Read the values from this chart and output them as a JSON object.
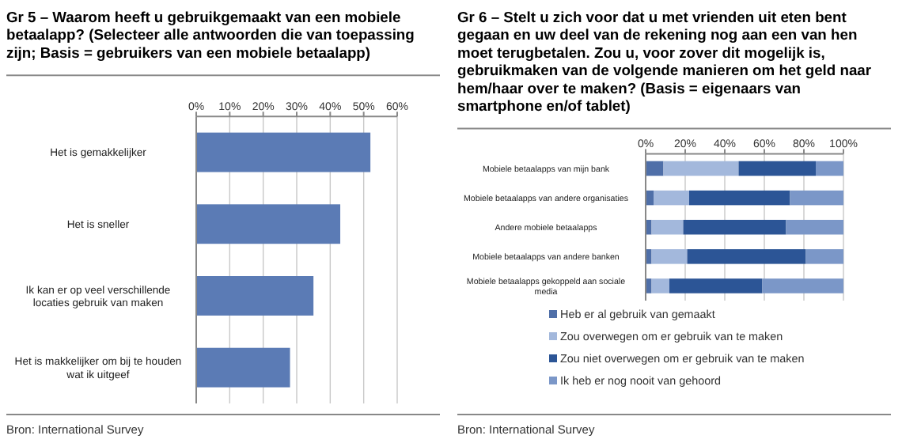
{
  "chart_data": [
    {
      "type": "bar",
      "orientation": "horizontal",
      "title": "Gr 5 –  Waarom heeft u gebruikgemaakt van een mobiele betaalapp? (Selecteer alle antwoorden die van toepassing zijn; Basis = gebruikers van een mobiele betaalapp)",
      "categories": [
        "Het is gemakkelijker",
        "Het is sneller",
        "Ik kan er op veel verschillende locaties gebruik van maken",
        "Het is makkelijker om bij te houden wat ik uitgeef"
      ],
      "values": [
        52,
        43,
        35,
        28
      ],
      "color": "#5b7bb5",
      "xlim": [
        0,
        60
      ],
      "xticks": [
        {
          "value": 0,
          "label": "0%"
        },
        {
          "value": 10,
          "label": "10%"
        },
        {
          "value": 20,
          "label": "20%"
        },
        {
          "value": 30,
          "label": "30%"
        },
        {
          "value": 40,
          "label": "40%"
        },
        {
          "value": 50,
          "label": "50%"
        },
        {
          "value": 60,
          "label": "60%"
        }
      ],
      "grid": "x",
      "annotations": [
        "Bron: International Survey"
      ]
    },
    {
      "type": "bar",
      "orientation": "horizontal",
      "stacked": true,
      "title": "Gr 6 –  Stelt u zich voor dat u met vrienden uit eten bent gegaan en uw deel van de rekening nog aan een van hen moet terugbetalen. Zou u, voor zover dit mogelijk is, gebruikmaken van de volgende manieren om het geld naar hem/haar over te maken? (Basis = eigenaars van smartphone en/of tablet)",
      "categories": [
        "Mobiele betaalapps van mijn bank",
        "Mobiele betaalapps van andere organisaties",
        "Andere mobiele betaalapps",
        "Mobiele betaalapps van andere banken",
        "Mobiele betaalapps gekoppeld aan sociale media"
      ],
      "series": [
        {
          "name": "Heb er al gebruik van gemaakt",
          "color": "#4f6fa8",
          "values": [
            9,
            4,
            3,
            3,
            3
          ]
        },
        {
          "name": "Zou overwegen om er gebruik van te maken",
          "color": "#a3b8dc",
          "values": [
            38,
            18,
            16,
            18,
            9
          ]
        },
        {
          "name": "Zou niet overwegen om er gebruik van te maken",
          "color": "#2c5596",
          "values": [
            39,
            51,
            52,
            60,
            47
          ]
        },
        {
          "name": "Ik heb er nog nooit van gehoord",
          "color": "#7b97c8",
          "values": [
            14,
            27,
            29,
            19,
            41
          ]
        }
      ],
      "xlim": [
        0,
        100
      ],
      "xticks": [
        {
          "value": 0,
          "label": "0%"
        },
        {
          "value": 20,
          "label": "20%"
        },
        {
          "value": 40,
          "label": "40%"
        },
        {
          "value": 60,
          "label": "60%"
        },
        {
          "value": 80,
          "label": "80%"
        },
        {
          "value": 100,
          "label": "100%"
        }
      ],
      "grid": "x",
      "legend": "bottom",
      "annotations": [
        "Bron: International Survey"
      ]
    }
  ]
}
